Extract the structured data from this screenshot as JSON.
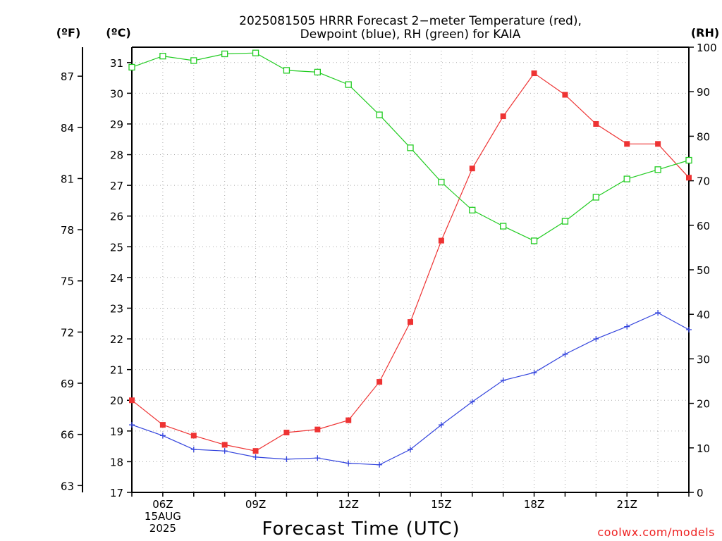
{
  "chart_data": {
    "type": "line",
    "title_lines": [
      "2025081505 HRRR Forecast 2−meter Temperature (red),",
      "Dewpoint (blue), RH (green) for KAIA"
    ],
    "xlabel": "Forecast Time (UTC)",
    "credit": "coolwx.com/models",
    "unit_labels": {
      "fahrenheit": "(ºF)",
      "celsius": "(ºC)",
      "rh": "(RH)"
    },
    "x": [
      "05Z",
      "06Z",
      "07Z",
      "08Z",
      "09Z",
      "10Z",
      "11Z",
      "12Z",
      "13Z",
      "14Z",
      "15Z",
      "16Z",
      "17Z",
      "18Z",
      "19Z",
      "20Z",
      "21Z",
      "22Z",
      "23Z"
    ],
    "x_tick_labels": [
      {
        "hour": "06Z",
        "lines": [
          "06Z",
          "15AUG",
          "2025"
        ]
      },
      {
        "hour": "09Z",
        "lines": [
          "09Z"
        ]
      },
      {
        "hour": "12Z",
        "lines": [
          "12Z"
        ]
      },
      {
        "hour": "15Z",
        "lines": [
          "15Z"
        ]
      },
      {
        "hour": "18Z",
        "lines": [
          "18Z"
        ]
      },
      {
        "hour": "21Z",
        "lines": [
          "21Z"
        ]
      }
    ],
    "celsius_axis": {
      "range": [
        17,
        31.5
      ],
      "ticks": [
        17,
        18,
        19,
        20,
        21,
        22,
        23,
        24,
        25,
        26,
        27,
        28,
        29,
        30,
        31
      ]
    },
    "fahrenheit_axis": {
      "ticks": [
        63,
        66,
        69,
        72,
        75,
        78,
        81,
        84,
        87
      ]
    },
    "rh_axis": {
      "range": [
        0,
        100
      ],
      "ticks": [
        0,
        10,
        20,
        30,
        40,
        50,
        60,
        70,
        80,
        90,
        100
      ]
    },
    "grid": true,
    "series": [
      {
        "name": "Temperature",
        "axis": "celsius",
        "color": "#ee3333",
        "marker": "filled-square",
        "values": [
          20.0,
          19.2,
          18.85,
          18.55,
          18.35,
          18.95,
          19.05,
          19.35,
          20.6,
          22.55,
          25.2,
          27.55,
          29.25,
          30.65,
          29.95,
          29.0,
          28.35,
          28.35,
          27.25
        ]
      },
      {
        "name": "Dewpoint",
        "axis": "celsius",
        "color": "#3344dd",
        "marker": "plus",
        "values": [
          19.2,
          18.85,
          18.4,
          18.35,
          18.15,
          18.08,
          18.12,
          17.95,
          17.9,
          18.4,
          19.2,
          19.95,
          20.65,
          20.9,
          21.5,
          22.0,
          22.4,
          22.85,
          22.3
        ]
      },
      {
        "name": "RH",
        "axis": "rh",
        "color": "#22cc22",
        "marker": "open-square",
        "values": [
          95.5,
          98.0,
          97.0,
          98.5,
          98.7,
          94.8,
          94.4,
          91.6,
          84.8,
          77.4,
          69.7,
          63.4,
          59.8,
          56.5,
          60.9,
          66.3,
          70.4,
          72.5,
          74.6
        ]
      }
    ]
  }
}
